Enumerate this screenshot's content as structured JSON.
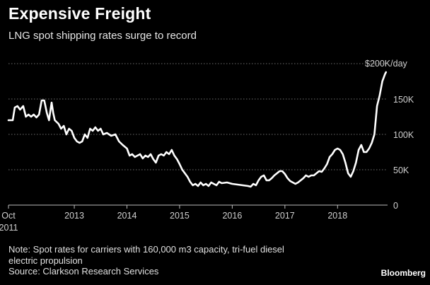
{
  "title": "Expensive Freight",
  "subtitle": "LNG spot shipping rates surge to record",
  "note": {
    "line1": "Note: Spot rates for carriers with 160,000 m3 capacity, tri-fuel diesel",
    "line2": "electric propulsion",
    "source": "Source: Clarkson Research Services"
  },
  "brand": "Bloomberg",
  "chart_data": {
    "type": "line",
    "title": "Expensive Freight",
    "subtitle": "LNG spot shipping rates surge to record",
    "xlabel": "",
    "ylabel": "",
    "unit": "K/day",
    "ylim": [
      0,
      200
    ],
    "xlim": [
      2011.75,
      2018.95
    ],
    "y_ticks": [
      {
        "value": 0,
        "label": "0"
      },
      {
        "value": 50,
        "label": "50K"
      },
      {
        "value": 100,
        "label": "100K"
      },
      {
        "value": 150,
        "label": "150K"
      },
      {
        "value": 200,
        "label": "$200K/day"
      }
    ],
    "x_ticks": [
      {
        "value": 2011.75,
        "label": "Oct",
        "sublabel": "2011"
      },
      {
        "value": 2013,
        "label": "2013"
      },
      {
        "value": 2014,
        "label": "2014"
      },
      {
        "value": 2015,
        "label": "2015"
      },
      {
        "value": 2016,
        "label": "2016"
      },
      {
        "value": 2017,
        "label": "2017"
      },
      {
        "value": 2018,
        "label": "2018"
      }
    ],
    "grid": "horizontal dotted",
    "series": [
      {
        "color": "#ffffff",
        "points": [
          [
            2011.75,
            120
          ],
          [
            2011.83,
            120
          ],
          [
            2011.87,
            138
          ],
          [
            2011.92,
            140
          ],
          [
            2011.97,
            135
          ],
          [
            2012.03,
            140
          ],
          [
            2012.08,
            125
          ],
          [
            2012.13,
            128
          ],
          [
            2012.18,
            125
          ],
          [
            2012.23,
            128
          ],
          [
            2012.28,
            124
          ],
          [
            2012.33,
            128
          ],
          [
            2012.38,
            148
          ],
          [
            2012.43,
            148
          ],
          [
            2012.48,
            130
          ],
          [
            2012.52,
            120
          ],
          [
            2012.57,
            145
          ],
          [
            2012.6,
            130
          ],
          [
            2012.63,
            120
          ],
          [
            2012.7,
            115
          ],
          [
            2012.75,
            108
          ],
          [
            2012.8,
            112
          ],
          [
            2012.85,
            100
          ],
          [
            2012.9,
            108
          ],
          [
            2012.95,
            105
          ],
          [
            2013.0,
            95
          ],
          [
            2013.05,
            90
          ],
          [
            2013.1,
            88
          ],
          [
            2013.15,
            90
          ],
          [
            2013.2,
            100
          ],
          [
            2013.25,
            95
          ],
          [
            2013.3,
            108
          ],
          [
            2013.35,
            105
          ],
          [
            2013.4,
            110
          ],
          [
            2013.45,
            105
          ],
          [
            2013.5,
            108
          ],
          [
            2013.55,
            100
          ],
          [
            2013.62,
            102
          ],
          [
            2013.7,
            98
          ],
          [
            2013.78,
            100
          ],
          [
            2013.85,
            90
          ],
          [
            2013.92,
            85
          ],
          [
            2014.0,
            80
          ],
          [
            2014.05,
            70
          ],
          [
            2014.1,
            72
          ],
          [
            2014.15,
            68
          ],
          [
            2014.2,
            70
          ],
          [
            2014.25,
            72
          ],
          [
            2014.3,
            66
          ],
          [
            2014.35,
            70
          ],
          [
            2014.4,
            68
          ],
          [
            2014.45,
            72
          ],
          [
            2014.5,
            65
          ],
          [
            2014.55,
            60
          ],
          [
            2014.6,
            70
          ],
          [
            2014.65,
            72
          ],
          [
            2014.7,
            70
          ],
          [
            2014.75,
            75
          ],
          [
            2014.8,
            72
          ],
          [
            2014.85,
            78
          ],
          [
            2014.9,
            70
          ],
          [
            2014.95,
            65
          ],
          [
            2015.0,
            58
          ],
          [
            2015.05,
            50
          ],
          [
            2015.1,
            45
          ],
          [
            2015.15,
            40
          ],
          [
            2015.2,
            33
          ],
          [
            2015.25,
            28
          ],
          [
            2015.3,
            30
          ],
          [
            2015.35,
            27
          ],
          [
            2015.4,
            32
          ],
          [
            2015.45,
            28
          ],
          [
            2015.5,
            30
          ],
          [
            2015.55,
            27
          ],
          [
            2015.6,
            32
          ],
          [
            2015.65,
            30
          ],
          [
            2015.7,
            28
          ],
          [
            2015.75,
            33
          ],
          [
            2015.8,
            31
          ],
          [
            2015.9,
            32
          ],
          [
            2016.0,
            30
          ],
          [
            2016.1,
            29
          ],
          [
            2016.2,
            28
          ],
          [
            2016.3,
            27
          ],
          [
            2016.35,
            26
          ],
          [
            2016.4,
            30
          ],
          [
            2016.45,
            28
          ],
          [
            2016.5,
            35
          ],
          [
            2016.55,
            40
          ],
          [
            2016.6,
            42
          ],
          [
            2016.65,
            35
          ],
          [
            2016.7,
            35
          ],
          [
            2016.75,
            38
          ],
          [
            2016.8,
            42
          ],
          [
            2016.85,
            45
          ],
          [
            2016.9,
            48
          ],
          [
            2016.95,
            48
          ],
          [
            2017.0,
            44
          ],
          [
            2017.05,
            38
          ],
          [
            2017.1,
            34
          ],
          [
            2017.15,
            32
          ],
          [
            2017.2,
            30
          ],
          [
            2017.25,
            32
          ],
          [
            2017.3,
            35
          ],
          [
            2017.35,
            38
          ],
          [
            2017.4,
            42
          ],
          [
            2017.45,
            40
          ],
          [
            2017.5,
            42
          ],
          [
            2017.55,
            42
          ],
          [
            2017.6,
            45
          ],
          [
            2017.65,
            48
          ],
          [
            2017.7,
            47
          ],
          [
            2017.75,
            52
          ],
          [
            2017.8,
            58
          ],
          [
            2017.85,
            68
          ],
          [
            2017.9,
            72
          ],
          [
            2017.95,
            78
          ],
          [
            2018.0,
            80
          ],
          [
            2018.05,
            78
          ],
          [
            2018.1,
            72
          ],
          [
            2018.15,
            60
          ],
          [
            2018.2,
            45
          ],
          [
            2018.25,
            40
          ],
          [
            2018.3,
            48
          ],
          [
            2018.35,
            60
          ],
          [
            2018.4,
            78
          ],
          [
            2018.45,
            85
          ],
          [
            2018.5,
            75
          ],
          [
            2018.55,
            75
          ],
          [
            2018.6,
            80
          ],
          [
            2018.65,
            88
          ],
          [
            2018.7,
            100
          ],
          [
            2018.75,
            140
          ],
          [
            2018.8,
            155
          ],
          [
            2018.85,
            175
          ],
          [
            2018.9,
            185
          ],
          [
            2018.92,
            188
          ]
        ]
      }
    ]
  }
}
